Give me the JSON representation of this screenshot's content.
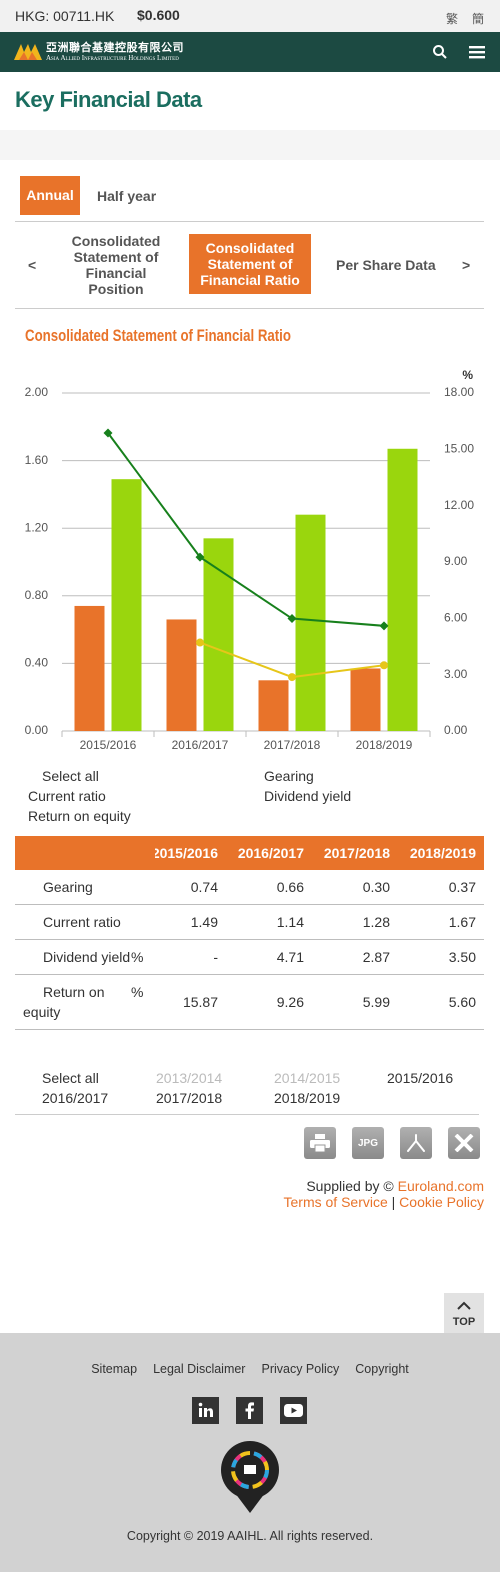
{
  "top_bar": {
    "ticker": "HKG: 00711.HK",
    "price": "$0.600",
    "languages": [
      "繁",
      "簡"
    ]
  },
  "header": {
    "company_name_zh": "亞洲聯合基建控股有限公司",
    "company_name_en": "Asia Allied Infrastructure Holdings Limited"
  },
  "page_title": "Key Financial Data",
  "period_tabs": {
    "items": [
      "Annual",
      "Half year"
    ],
    "active": 0
  },
  "statement_tabs": {
    "prev": "<",
    "items": [
      "Consolidated Statement of Financial Position",
      "Consolidated Statement of Financial Ratio",
      "Per Share Data"
    ],
    "active": 1,
    "next": ">"
  },
  "chart_data": {
    "type": "bar",
    "title": "Consolidated Statement of Financial Ratio",
    "y2_label": "%",
    "categories": [
      "2015/2016",
      "2016/2017",
      "2017/2018",
      "2018/2019"
    ],
    "series": [
      {
        "name": "Gearing",
        "type": "bar",
        "color": "#e8732a",
        "values": [
          0.74,
          0.66,
          0.3,
          0.37
        ]
      },
      {
        "name": "Current ratio",
        "type": "bar",
        "color": "#9ad60d",
        "values": [
          1.49,
          1.14,
          1.28,
          1.67
        ]
      },
      {
        "name": "Dividend yield",
        "type": "line",
        "marker": "circle",
        "axis": "y2",
        "color": "#e6c619",
        "values": [
          null,
          4.71,
          2.87,
          3.5
        ]
      },
      {
        "name": "Return on equity",
        "type": "line",
        "marker": "diamond",
        "axis": "y2",
        "color": "#17801c",
        "values": [
          15.87,
          9.26,
          5.99,
          5.6
        ]
      }
    ],
    "ylim": [
      0,
      2
    ],
    "yticks": [
      {
        "value": 0,
        "label": "0.00"
      },
      {
        "value": 0.4,
        "label": "0.40"
      },
      {
        "value": 0.8,
        "label": "0.80"
      },
      {
        "value": 1.2,
        "label": "1.20"
      },
      {
        "value": 1.6,
        "label": "1.60"
      },
      {
        "value": 2,
        "label": "2.00"
      }
    ],
    "y2lim": [
      0,
      18
    ],
    "y2ticks": [
      {
        "value": 0,
        "label": "0.00"
      },
      {
        "value": 3,
        "label": "3.00"
      },
      {
        "value": 6,
        "label": "6.00"
      },
      {
        "value": 9,
        "label": "9.00"
      },
      {
        "value": 12,
        "label": "12.00"
      },
      {
        "value": 15,
        "label": "15.00"
      },
      {
        "value": 18,
        "label": "18.00"
      }
    ],
    "grid": true,
    "legend_toggle": "Select all",
    "legend_toggle_checked": true
  },
  "table": {
    "columns": [
      "2015/2016",
      "2016/2017",
      "2017/2018",
      "2018/2019"
    ],
    "rows": [
      {
        "label": "Gearing",
        "checked": true,
        "values": [
          "0.74",
          "0.66",
          "0.30",
          "0.37"
        ]
      },
      {
        "label": "Current ratio",
        "checked": true,
        "values": [
          "1.49",
          "1.14",
          "1.28",
          "1.67"
        ]
      },
      {
        "label": "Dividend yield",
        "unit": "%",
        "checked": true,
        "values": [
          "-",
          "4.71",
          "2.87",
          "3.50"
        ]
      },
      {
        "label": "Return on equity",
        "unit": "%",
        "checked": true,
        "values": [
          "15.87",
          "9.26",
          "5.99",
          "5.60"
        ]
      }
    ]
  },
  "year_filter": [
    {
      "label": "Select all",
      "checked": false
    },
    {
      "label": "2013/2014",
      "checked": false,
      "disabled": true
    },
    {
      "label": "2014/2015",
      "checked": true,
      "disabled": true
    },
    {
      "label": "2015/2016",
      "checked": true
    },
    {
      "label": "2016/2017",
      "checked": true
    },
    {
      "label": "2017/2018",
      "checked": true
    },
    {
      "label": "2018/2019",
      "checked": true
    }
  ],
  "tools": {
    "jpg": "JPG"
  },
  "credits": {
    "supplied_by": "Supplied by ©",
    "provider": "Euroland.com",
    "terms": "Terms of Service",
    "separator": "|",
    "cookie": "Cookie Policy"
  },
  "back_to_top": "TOP",
  "footer": {
    "links": [
      "Sitemap",
      "Legal Disclaimer",
      "Privacy Policy",
      "Copyright"
    ],
    "copyright": "Copyright © 2019 AAIHL. All rights reserved."
  }
}
